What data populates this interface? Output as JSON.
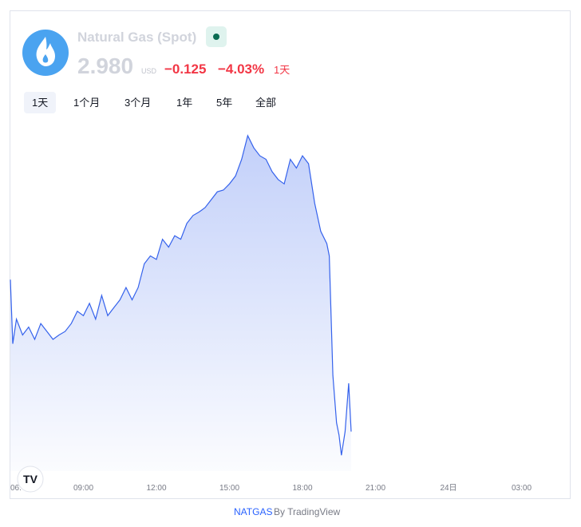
{
  "header": {
    "title": "Natural Gas (Spot)",
    "price": "2.980",
    "currency": "USD",
    "change": "−0.125",
    "change_percent": "−4.03%",
    "period": "1天"
  },
  "tabs": [
    "1天",
    "1个月",
    "3个月",
    "1年",
    "5年",
    "全部"
  ],
  "footer": {
    "symbol": "NATGAS",
    "by": "By TradingView"
  },
  "chart_data": {
    "type": "area",
    "color": "#3562ec",
    "x": [
      6.0,
      6.1,
      6.25,
      6.5,
      6.75,
      7.0,
      7.25,
      7.5,
      7.75,
      8.0,
      8.25,
      8.5,
      8.75,
      9.0,
      9.25,
      9.5,
      9.75,
      10.0,
      10.25,
      10.5,
      10.75,
      11.0,
      11.25,
      11.5,
      11.75,
      12.0,
      12.25,
      12.5,
      12.75,
      13.0,
      13.25,
      13.5,
      13.75,
      14.0,
      14.25,
      14.5,
      14.75,
      15.0,
      15.25,
      15.5,
      15.75,
      16.0,
      16.25,
      16.5,
      16.75,
      17.0,
      17.25,
      17.5,
      17.75,
      18.0,
      18.25,
      18.5,
      18.75,
      19.0,
      19.1,
      19.25,
      19.4,
      19.5,
      19.6,
      19.75,
      19.9,
      20.0
    ],
    "values": [
      3.153,
      3.08,
      3.108,
      3.09,
      3.099,
      3.085,
      3.103,
      3.094,
      3.085,
      3.09,
      3.094,
      3.103,
      3.117,
      3.112,
      3.126,
      3.108,
      3.135,
      3.112,
      3.121,
      3.13,
      3.144,
      3.13,
      3.144,
      3.171,
      3.18,
      3.176,
      3.199,
      3.19,
      3.203,
      3.199,
      3.217,
      3.226,
      3.23,
      3.235,
      3.244,
      3.253,
      3.255,
      3.262,
      3.271,
      3.29,
      3.317,
      3.303,
      3.294,
      3.29,
      3.276,
      3.267,
      3.262,
      3.29,
      3.28,
      3.294,
      3.285,
      3.24,
      3.208,
      3.194,
      3.18,
      3.044,
      2.99,
      2.976,
      2.953,
      2.98,
      3.035,
      2.98
    ],
    "xlim": [
      6,
      29
    ],
    "ylim": [
      2.935,
      3.335
    ],
    "xticks": [
      {
        "value": 6,
        "label": "06."
      },
      {
        "value": 9,
        "label": "09:00"
      },
      {
        "value": 12,
        "label": "12:00"
      },
      {
        "value": 15,
        "label": "15:00"
      },
      {
        "value": 18,
        "label": "18:00"
      },
      {
        "value": 21,
        "label": "21:00"
      },
      {
        "value": 24,
        "label": "24日"
      },
      {
        "value": 27,
        "label": "03:00"
      }
    ]
  }
}
